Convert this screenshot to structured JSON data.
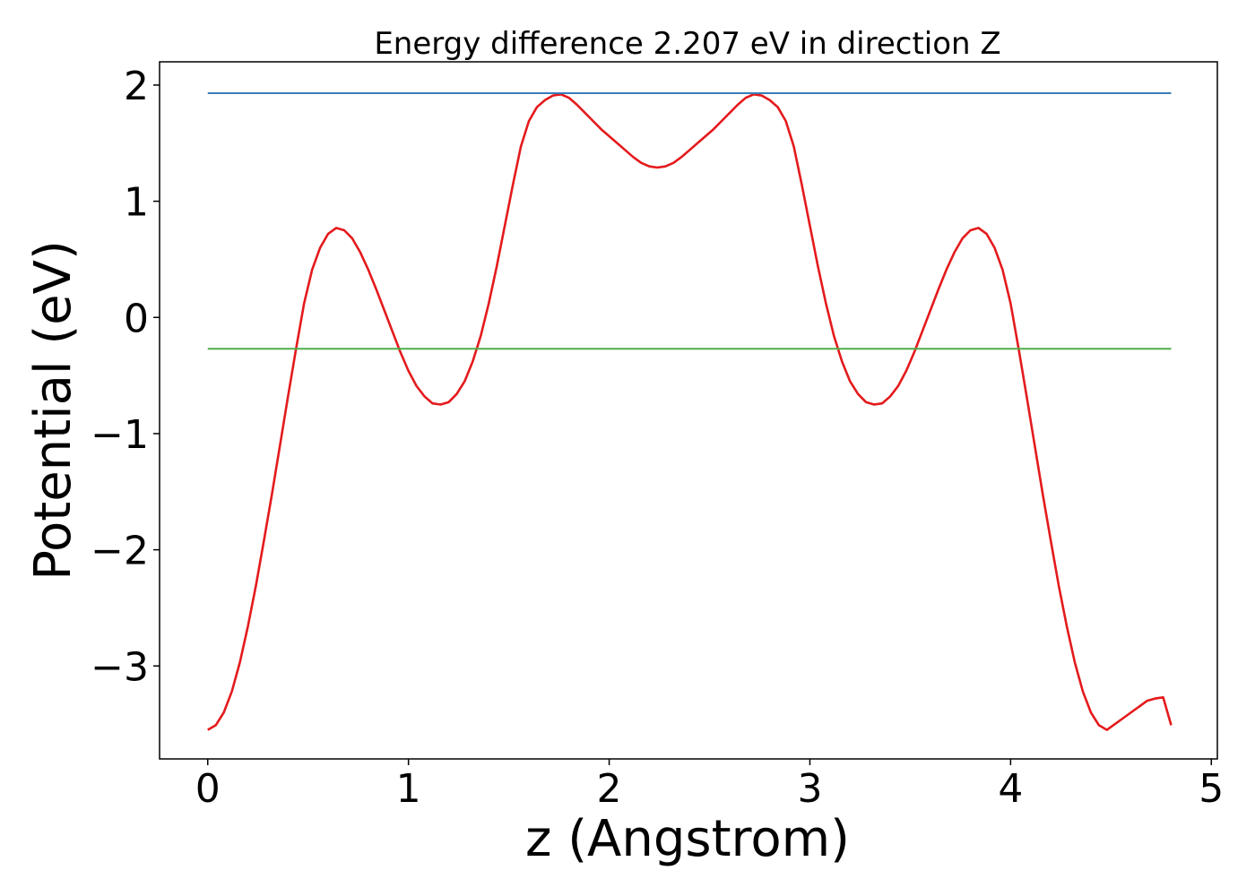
{
  "chart_data": {
    "type": "line",
    "title": "Energy difference 2.207 eV in direction Z",
    "xlabel": "z (Angstrom)",
    "ylabel": "Potential (eV)",
    "xlim": [
      -0.24,
      5.03
    ],
    "ylim": [
      -3.8,
      2.2
    ],
    "xticks": [
      0,
      1,
      2,
      3,
      4,
      5
    ],
    "yticks": [
      -3,
      -2,
      -1,
      0,
      1,
      2
    ],
    "grid": false,
    "colors": {
      "potential": "#e41a1c",
      "upper": "#377eb8",
      "lower": "#4daf4a"
    },
    "series": [
      {
        "type": "line",
        "color": "#e41a1c",
        "x": [
          0.0,
          0.04,
          0.08,
          0.12,
          0.16,
          0.2,
          0.24,
          0.28,
          0.32,
          0.36,
          0.4,
          0.44,
          0.48,
          0.52,
          0.56,
          0.6,
          0.64,
          0.68,
          0.72,
          0.76,
          0.8,
          0.84,
          0.88,
          0.92,
          0.96,
          1.0,
          1.04,
          1.08,
          1.12,
          1.16,
          1.2,
          1.24,
          1.28,
          1.32,
          1.36,
          1.4,
          1.44,
          1.48,
          1.52,
          1.56,
          1.6,
          1.64,
          1.68,
          1.72,
          1.76,
          1.8,
          1.84,
          1.88,
          1.92,
          1.96,
          2.0,
          2.04,
          2.08,
          2.12,
          2.16,
          2.2,
          2.24,
          2.28,
          2.32,
          2.36,
          2.4,
          2.44,
          2.48,
          2.52,
          2.56,
          2.6,
          2.64,
          2.68,
          2.72,
          2.76,
          2.8,
          2.84,
          2.88,
          2.92,
          2.96,
          3.0,
          3.04,
          3.08,
          3.12,
          3.16,
          3.2,
          3.24,
          3.28,
          3.32,
          3.36,
          3.4,
          3.44,
          3.48,
          3.52,
          3.56,
          3.6,
          3.64,
          3.68,
          3.72,
          3.76,
          3.8,
          3.84,
          3.88,
          3.92,
          3.96,
          4.0,
          4.04,
          4.08,
          4.12,
          4.16,
          4.2,
          4.24,
          4.28,
          4.32,
          4.36,
          4.4,
          4.44,
          4.48,
          4.52,
          4.56,
          4.6,
          4.64,
          4.68,
          4.72,
          4.76,
          4.8
        ],
        "y": [
          -3.55,
          -3.51,
          -3.4,
          -3.22,
          -2.97,
          -2.66,
          -2.31,
          -1.92,
          -1.52,
          -1.1,
          -0.68,
          -0.27,
          0.12,
          0.41,
          0.6,
          0.72,
          0.77,
          0.75,
          0.68,
          0.56,
          0.41,
          0.24,
          0.06,
          -0.12,
          -0.3,
          -0.46,
          -0.59,
          -0.68,
          -0.74,
          -0.75,
          -0.73,
          -0.66,
          -0.55,
          -0.38,
          -0.16,
          0.12,
          0.44,
          0.79,
          1.14,
          1.47,
          1.69,
          1.81,
          1.87,
          1.91,
          1.92,
          1.89,
          1.83,
          1.76,
          1.69,
          1.62,
          1.56,
          1.5,
          1.44,
          1.38,
          1.33,
          1.3,
          1.29,
          1.3,
          1.33,
          1.38,
          1.44,
          1.5,
          1.56,
          1.62,
          1.69,
          1.76,
          1.83,
          1.89,
          1.92,
          1.91,
          1.87,
          1.81,
          1.69,
          1.47,
          1.14,
          0.79,
          0.44,
          0.12,
          -0.16,
          -0.38,
          -0.55,
          -0.66,
          -0.73,
          -0.75,
          -0.74,
          -0.68,
          -0.59,
          -0.46,
          -0.3,
          -0.12,
          0.06,
          0.24,
          0.41,
          0.56,
          0.68,
          0.75,
          0.77,
          0.72,
          0.6,
          0.41,
          0.12,
          -0.27,
          -0.68,
          -1.1,
          -1.52,
          -1.92,
          -2.31,
          -2.66,
          -2.97,
          -3.22,
          -3.4,
          -3.51,
          -3.55,
          -3.5,
          -3.45,
          -3.4,
          -3.35,
          -3.3,
          -3.28,
          -3.27,
          -3.51
        ]
      },
      {
        "type": "hline",
        "color": "#377eb8",
        "x": [
          0.0,
          4.8
        ],
        "y": [
          1.93,
          1.93
        ]
      },
      {
        "type": "hline",
        "color": "#4daf4a",
        "x": [
          0.0,
          4.8
        ],
        "y": [
          -0.27,
          -0.27
        ]
      }
    ]
  }
}
